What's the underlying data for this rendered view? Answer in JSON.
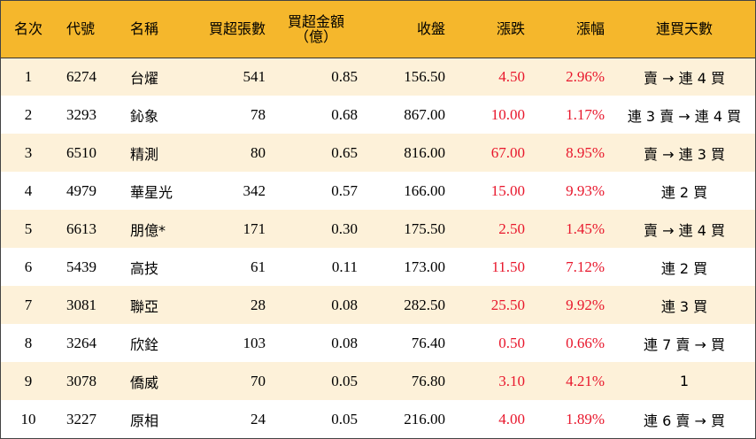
{
  "table": {
    "headers": {
      "rank": "名次",
      "code": "代號",
      "name": "名稱",
      "net_buy_lots": "買超張數",
      "net_buy_amount_l1": "買超金額",
      "net_buy_amount_l2": "（億）",
      "close": "收盤",
      "change": "漲跌",
      "change_pct": "漲幅",
      "streak": "連買天數"
    },
    "rows": [
      {
        "rank": "1",
        "code": "6274",
        "name": "台燿",
        "lots": "541",
        "amount": "0.85",
        "close": "156.50",
        "change": "4.50",
        "pct": "2.96%",
        "streak": "賣 → 連 4 買"
      },
      {
        "rank": "2",
        "code": "3293",
        "name": "鈊象",
        "lots": "78",
        "amount": "0.68",
        "close": "867.00",
        "change": "10.00",
        "pct": "1.17%",
        "streak": "連 3 賣 → 連 4 買"
      },
      {
        "rank": "3",
        "code": "6510",
        "name": "精測",
        "lots": "80",
        "amount": "0.65",
        "close": "816.00",
        "change": "67.00",
        "pct": "8.95%",
        "streak": "賣 → 連 3 買"
      },
      {
        "rank": "4",
        "code": "4979",
        "name": "華星光",
        "lots": "342",
        "amount": "0.57",
        "close": "166.00",
        "change": "15.00",
        "pct": "9.93%",
        "streak": "連 2 買"
      },
      {
        "rank": "5",
        "code": "6613",
        "name": "朋億*",
        "lots": "171",
        "amount": "0.30",
        "close": "175.50",
        "change": "2.50",
        "pct": "1.45%",
        "streak": "賣 → 連 4 買"
      },
      {
        "rank": "6",
        "code": "5439",
        "name": "高技",
        "lots": "61",
        "amount": "0.11",
        "close": "173.00",
        "change": "11.50",
        "pct": "7.12%",
        "streak": "連 2 買"
      },
      {
        "rank": "7",
        "code": "3081",
        "name": "聯亞",
        "lots": "28",
        "amount": "0.08",
        "close": "282.50",
        "change": "25.50",
        "pct": "9.92%",
        "streak": "連 3 買"
      },
      {
        "rank": "8",
        "code": "3264",
        "name": "欣銓",
        "lots": "103",
        "amount": "0.08",
        "close": "76.40",
        "change": "0.50",
        "pct": "0.66%",
        "streak": "連 7 賣 → 買"
      },
      {
        "rank": "9",
        "code": "3078",
        "name": "僑威",
        "lots": "70",
        "amount": "0.05",
        "close": "76.80",
        "change": "3.10",
        "pct": "4.21%",
        "streak": "1"
      },
      {
        "rank": "10",
        "code": "3227",
        "name": "原相",
        "lots": "24",
        "amount": "0.05",
        "close": "216.00",
        "change": "4.00",
        "pct": "1.89%",
        "streak": "連 6 賣 → 買"
      }
    ]
  },
  "colors": {
    "header_bg": "#f5b72c",
    "odd_row_bg": "#fdf1d9",
    "even_row_bg": "#ffffff",
    "positive_change": "#e8172c"
  }
}
